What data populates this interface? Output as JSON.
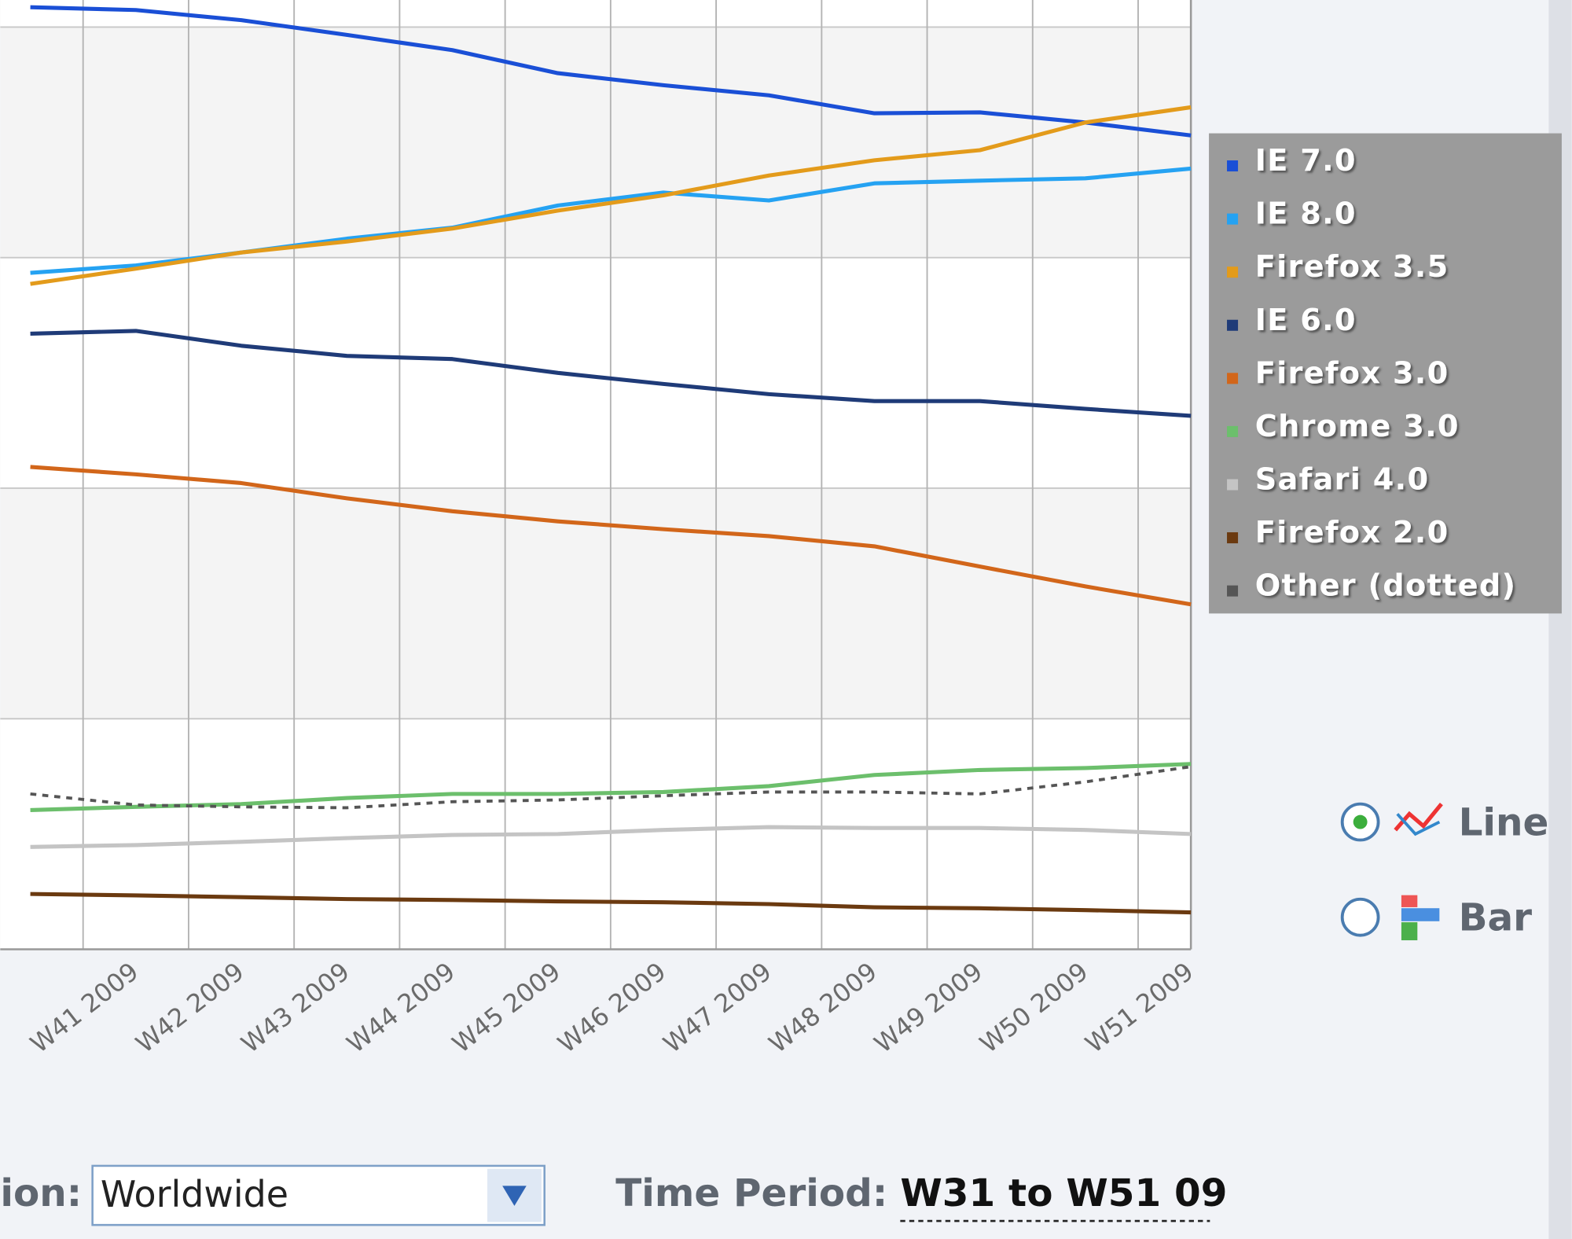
{
  "chart_data": {
    "type": "line",
    "categories": [
      null,
      "W41 2009",
      "W42 2009",
      "W43 2009",
      "W44 2009",
      "W45 2009",
      "W46 2009",
      "W47 2009",
      "W48 2009",
      "W49 2009",
      "W50 2009",
      "W51 2009"
    ],
    "ylim": [
      0,
      20
    ],
    "grid": true,
    "legend": "right",
    "series": [
      {
        "name": "IE 7.0",
        "color": "#1a4fd6",
        "values": [
          20.43,
          20.37,
          20.15,
          19.83,
          19.5,
          19.0,
          18.74,
          18.52,
          18.13,
          18.15,
          17.93,
          17.65
        ]
      },
      {
        "name": "IE 8.0",
        "color": "#25a2f2",
        "values": [
          14.67,
          14.83,
          15.11,
          15.41,
          15.65,
          16.13,
          16.41,
          16.24,
          16.61,
          16.67,
          16.72,
          16.93
        ]
      },
      {
        "name": "Firefox 3.5",
        "color": "#e39b1b",
        "values": [
          14.43,
          14.76,
          15.11,
          15.35,
          15.63,
          16.02,
          16.35,
          16.78,
          17.11,
          17.33,
          17.93,
          18.26
        ]
      },
      {
        "name": "IE 6.0",
        "color": "#1f3b78",
        "values": [
          13.35,
          13.41,
          13.09,
          12.87,
          12.8,
          12.5,
          12.26,
          12.04,
          11.89,
          11.89,
          11.72,
          11.57
        ]
      },
      {
        "name": "Firefox 3.0",
        "color": "#d2661a",
        "values": [
          10.46,
          10.3,
          10.11,
          9.78,
          9.5,
          9.28,
          9.11,
          8.96,
          8.74,
          8.3,
          7.87,
          7.48
        ]
      },
      {
        "name": "Chrome 3.0",
        "color": "#6cbf6c",
        "values": [
          3.02,
          3.09,
          3.15,
          3.28,
          3.37,
          3.37,
          3.41,
          3.54,
          3.78,
          3.89,
          3.93,
          4.02
        ]
      },
      {
        "name": "Safari 4.0",
        "color": "#c4c4c4",
        "values": [
          2.22,
          2.26,
          2.33,
          2.41,
          2.48,
          2.5,
          2.59,
          2.65,
          2.63,
          2.63,
          2.59,
          2.5
        ]
      },
      {
        "name": "Firefox 2.0",
        "color": "#6b3a10",
        "values": [
          1.2,
          1.17,
          1.13,
          1.09,
          1.07,
          1.04,
          1.02,
          0.98,
          0.91,
          0.89,
          0.85,
          0.8
        ]
      },
      {
        "name": "Other (dotted)",
        "color": "#555555",
        "dotted": true,
        "values": [
          3.37,
          3.13,
          3.09,
          3.07,
          3.2,
          3.24,
          3.33,
          3.41,
          3.41,
          3.37,
          3.63,
          3.96
        ]
      }
    ]
  },
  "controls": {
    "chart_types": [
      "Line",
      "Bar"
    ],
    "region_label": "ion:",
    "region": "Worldwide",
    "period_label": "Time Period:",
    "period": "W31 to W51 09"
  }
}
